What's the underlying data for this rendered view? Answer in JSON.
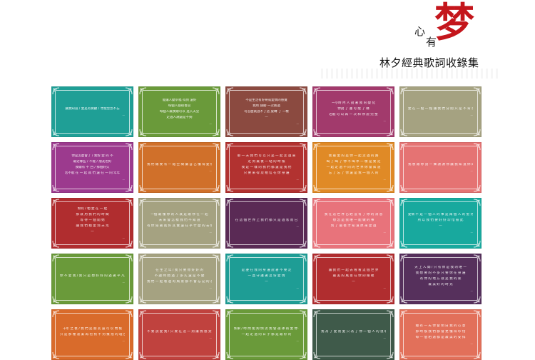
{
  "header": {
    "mark_zi": "梦",
    "mark_xin": "心",
    "mark_you": "有",
    "subtitle": "林夕經典歌詞收錄集"
  },
  "cards": [
    {
      "color": "#1f9f96",
      "lines": [
        "讓我知道 / 愛是有要顧 / 才能念念不忘"
      ],
      "align": "c",
      "sig": "—"
    },
    {
      "color": "#6a9a3a",
      "lines": [
        "能讓人變幸福 得到 還好",
        "每個人都很善良",
        "每個人最後總可以 進入天堂",
        "走過人潮還是不夠"
      ],
      "align": "c",
      "sig": "—"
    },
    {
      "color": "#8b4a40",
      "lines": [
        "不是生活有好奇或愛情的感覺",
        "我用 翅膀 一次跌過",
        "可怎麼就逃不了這 旋轉 了 一樣",
        "—"
      ],
      "align": "c",
      "sig": "—"
    },
    {
      "color": "#a23a6c",
      "lines": [
        "一小時 內 人 說 著 我 的 變 化",
        "你說 了 誰 可 能 了 緣",
        "若能 可 以 再 一 次 和 你 說 完 整"
      ],
      "align": "c",
      "sig": "—"
    },
    {
      "color": "#a5a281",
      "lines": [
        "愛 在 一 點 一 點 讓 我 們 分 開 只 是 不 肯 承 認 而 已"
      ],
      "align": "c",
      "sig": "—"
    },
    {
      "color": "#9c3a8e",
      "lines": [
        "你是怎麼會了 / 我對 愛 的 不",
        "最近哪些 / 不能 / 朋友也好",
        "我總有 不 回 / 那個好久",
        "若不能 在 一 起 就 們 還 在 一 同 年年"
      ],
      "align": "c",
      "sig": "—"
    },
    {
      "color": "#d0702a",
      "lines": [
        "我 們 總 要 有 一 點 空 間 讓 自 己 懂 得 愛 情"
      ],
      "align": "l",
      "sig": "—"
    },
    {
      "color": "#b23230",
      "lines": [
        "那 一 天 我 們 可 以 只 是 一 起 走 過 來",
        "走 到 最 後 一 站 的 時 候",
        "我 是 一 樣 的 我 們 都 還 是 我 們",
        "只 要 來 得 及 相 信 在 你 身 邊"
      ],
      "align": "c",
      "sig": "—"
    },
    {
      "color": "#e08a26",
      "lines": [
        "我 最 愛 的 是 你 一 起 走 過 的 路",
        "喝 了 喝 了 你 不 喝 水 一 樣 是 要 走",
        "一 起 走 過 不 同 的 世 界 你 會 知 道",
        "忘 了 忘 了 你 還 是 我 一 個 人 的"
      ],
      "align": "c",
      "sig": "—"
    },
    {
      "color": "#e57373",
      "lines": [
        "我 想 跟 你 說 一 聲 謝 謝 你 讓 我 知 道 你 的 好"
      ],
      "align": "l",
      "sig": "—"
    },
    {
      "color": "#b02d2f",
      "lines": [
        "如何 / 相 愛 在 一 起",
        "那 就 用 我 們 的 時 間",
        "等 待 一 個 開 始",
        "讓 我 們 相 愛 到 天 荒",
        "—"
      ],
      "align": "c",
      "sig": "—"
    },
    {
      "color": "#a5a281",
      "lines": [
        "一個 最 懂 你 的 人 就 是 跟 你 在 一 起",
        "未 來 會 怎 樣 我 們 不 知 道",
        "有 你 陪 著 就 好 其 實 還 在 乎 什 麼 的 去 做"
      ],
      "align": "c",
      "sig": "—"
    },
    {
      "color": "#5a2a55",
      "lines": [
        "在 這 個 世 界 上 我 們 都 只 是 過 客 而 已"
      ],
      "align": "c",
      "sig": "—"
    },
    {
      "color": "#e8737b",
      "lines": [
        "我 在 這 世 界 已 經 沒 有 了 你 的 消 息",
        "想 念 是 我 唯 一 能 做 的 事",
        "到 了 最 後 才 知 道 原 來 愛 過"
      ],
      "align": "c",
      "sig": "—"
    },
    {
      "color": "#18a99e",
      "lines": [
        "愛情 不 是 一 個 人 的 事 是 兩 個 人 的 堅 持",
        "所 以 我 們 要 好 好 珍 惜 彼 此",
        "—"
      ],
      "align": "c",
      "sig": "—"
    },
    {
      "color": "#6a9a3a",
      "lines": [
        "你 不 愛 我 / 我 只 是 想 好 好 的 過 著 平 凡 的 日 子"
      ],
      "align": "c",
      "sig": "—"
    },
    {
      "color": "#a5a281",
      "lines": [
        "在 生 之 年 / 我 只 要 你 好 好 的",
        "不 論 時 間 過 了 多 久 還 是 不 變",
        "我 們 一 起 看 過 的 風 景 都 不 會 忘 記 的 永 遠"
      ],
      "align": "c",
      "sig": "—"
    },
    {
      "color": "#1e9d95",
      "lines": [
        "是 誰 在 我 的 身 邊 說 著 不 要 走",
        "一 直 守 護 著 這 份 愛 情",
        "—"
      ],
      "align": "c",
      "sig": "—"
    },
    {
      "color": "#b02d2f",
      "lines": [
        "讓 我 們 一 起 去 看 看 這 個 世 界",
        "最 美 的 風 景 在 你 的 眼 裡",
        "—"
      ],
      "align": "c",
      "sig": "—"
    },
    {
      "color": "#56305c",
      "lines": [
        "天 上 人 間 / 只 有 你 是 我 的 唯 一",
        "我 想 要 的 不 多 只 要 你 在 身 邊",
        "有 你 的 地 方 就 是 我 的 家",
        "最 美 好 的 時 光"
      ],
      "align": "c",
      "sig": "—"
    },
    {
      "color": "#d96b2b",
      "lines": [
        "十年 之 後 / 我 們 是 朋 友 還 可 以 問 候",
        "只 是 那 種 溫 柔 再 也 找 不 到 擁 抱 的 理 由"
      ],
      "align": "c",
      "sig": "—"
    },
    {
      "color": "#c0423e",
      "lines": [
        "不 要 說 愛 我 / 只 要 在 這 一 刻 讓 我 感 受 你 的 溫 度"
      ],
      "align": "l",
      "sig": "—"
    },
    {
      "color": "#6a9a3a",
      "lines": [
        "如果 / 時 間 能 夠 倒 流 我 會 選 擇 再 愛 你 一 次",
        "一 起 走 過 的 日 子 都 是 最 好 的"
      ],
      "align": "c",
      "sig": "—"
    },
    {
      "color": "#3f5a4a",
      "lines": [
        "我 為 了 愛 而 愛 只 為 了 你 一 個 人 的 溫 暖"
      ],
      "align": "c",
      "sig": "—"
    },
    {
      "color": "#e2705a",
      "lines": [
        "總 有 一 天 你 會 明 白 我 的 心 意",
        "那 時 候 我 們 都 會 更 懂 得 珍 惜",
        "每 一 個 相 遇 都 是 最 美 的 安 排"
      ],
      "align": "c",
      "sig": "—"
    }
  ]
}
